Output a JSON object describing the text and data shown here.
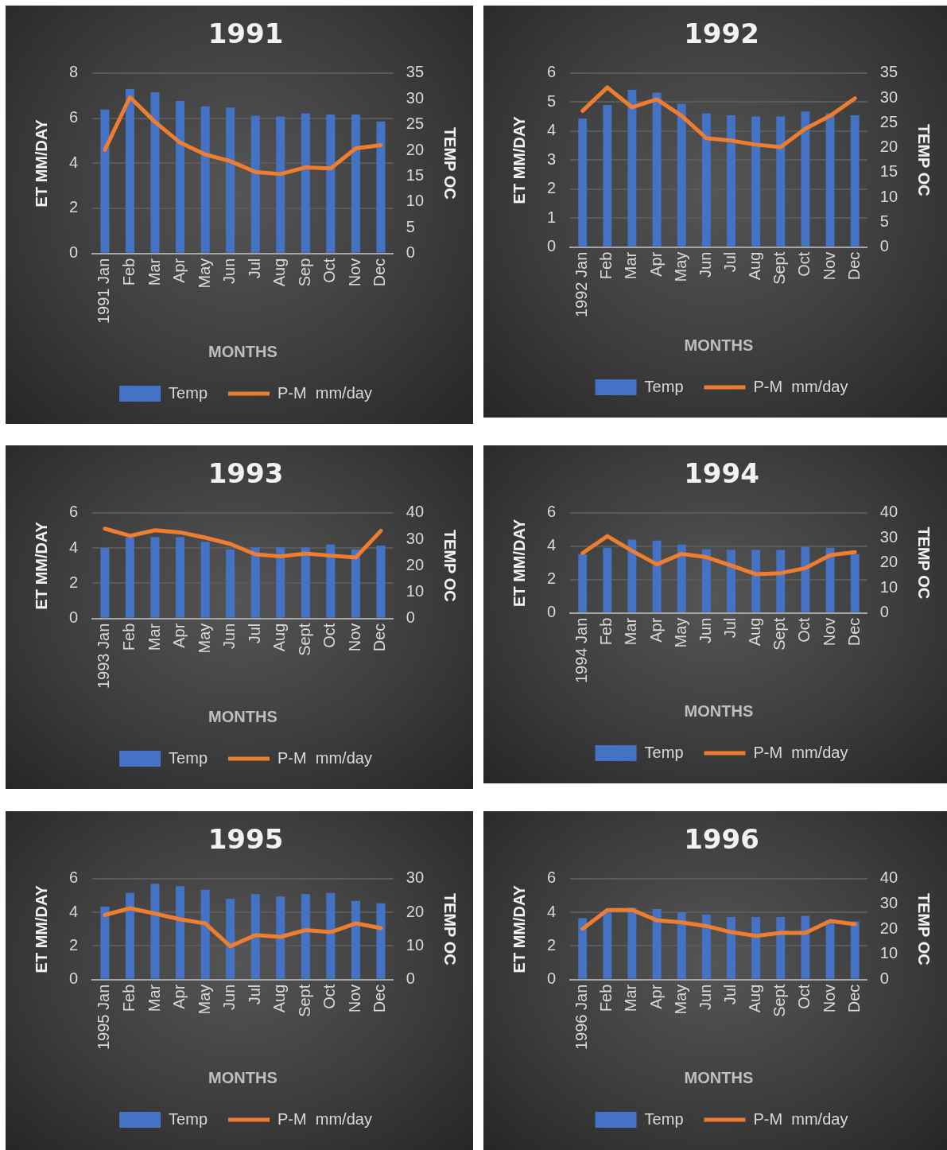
{
  "chart_data": [
    {
      "type": "bar",
      "title": "1991",
      "xlabel": "MONTHS",
      "ylabel": "ET MM/DAY",
      "y2label": "TEMP OC",
      "categories": [
        "1991 Jan",
        "Feb",
        "Mar",
        "Apr",
        "May",
        "Jun",
        "Jul",
        "Aug",
        "Sep",
        "Oct",
        "Nov",
        "Dec"
      ],
      "series": [
        {
          "name": "Temp",
          "color": "#4472c4",
          "values": [
            6.38,
            7.29,
            7.15,
            6.76,
            6.52,
            6.47,
            6.11,
            6.07,
            6.21,
            6.16,
            6.16,
            5.85
          ]
        },
        {
          "name": "P-M  mm/day",
          "type": "line",
          "axis": "y2",
          "color": "#ed7d31",
          "values": [
            20.1,
            30.3,
            25.5,
            21.5,
            19.2,
            17.9,
            15.8,
            15.4,
            16.7,
            16.5,
            20.4,
            21.0
          ]
        }
      ],
      "ylim": [
        0,
        8
      ],
      "yticks": [
        0,
        2,
        4,
        6,
        8
      ],
      "y2lim": [
        0,
        35
      ],
      "y2ticks": [
        0,
        5,
        10,
        15,
        20,
        25,
        30,
        35
      ],
      "grid": "y",
      "legend": "bottom",
      "marker": "none"
    },
    {
      "type": "bar",
      "title": "1992",
      "xlabel": "MONTHS",
      "ylabel": "ET MM/DAY",
      "y2label": "TEMP OC",
      "categories": [
        "1992 Jan",
        "Feb",
        "Mar",
        "Apr",
        "May",
        "Jun",
        "Jul",
        "Aug",
        "Sept",
        "Oct",
        "Nov",
        "Dec"
      ],
      "series": [
        {
          "name": "Temp",
          "color": "#4472c4",
          "values": [
            4.43,
            4.9,
            5.42,
            5.32,
            4.94,
            4.61,
            4.54,
            4.5,
            4.5,
            4.67,
            4.61,
            4.54
          ]
        },
        {
          "name": "P-M  mm/day",
          "type": "line",
          "axis": "y2",
          "color": "#ed7d31",
          "values": [
            27.4,
            32.1,
            28.1,
            29.7,
            26.4,
            21.9,
            21.4,
            20.6,
            20.1,
            23.8,
            26.4,
            29.9
          ]
        }
      ],
      "ylim": [
        0,
        6
      ],
      "yticks": [
        0,
        1,
        2,
        3,
        4,
        5,
        6
      ],
      "y2lim": [
        0,
        35
      ],
      "y2ticks": [
        0,
        5,
        10,
        15,
        20,
        25,
        30,
        35
      ],
      "grid": "y",
      "legend": "bottom",
      "marker": "none"
    },
    {
      "type": "bar",
      "title": "1993",
      "xlabel": "MONTHS",
      "ylabel": "ET MM/DAY",
      "y2label": "TEMP OC",
      "categories": [
        "1993 Jan",
        "Feb",
        "Mar",
        "Apr",
        "May",
        "Jun",
        "Jul",
        "Aug",
        "Sept",
        "Oct",
        "Nov",
        "Dec"
      ],
      "series": [
        {
          "name": "Temp",
          "color": "#4472c4",
          "values": [
            4.0,
            4.59,
            4.63,
            4.63,
            4.35,
            3.92,
            4.04,
            4.04,
            4.04,
            4.21,
            3.92,
            4.14
          ]
        },
        {
          "name": "P-M  mm/day",
          "type": "line",
          "axis": "y2",
          "color": "#ed7d31",
          "values": [
            34.0,
            31.3,
            33.4,
            32.6,
            30.6,
            28.2,
            24.3,
            23.5,
            24.6,
            23.8,
            23.1,
            33.2
          ]
        }
      ],
      "ylim": [
        0,
        6
      ],
      "yticks": [
        0,
        2,
        4,
        6
      ],
      "y2lim": [
        0,
        40
      ],
      "y2ticks": [
        0,
        10,
        20,
        30,
        40
      ],
      "grid": "y",
      "legend": "bottom",
      "marker": "none"
    },
    {
      "type": "bar",
      "title": "1994",
      "xlabel": "MONTHS",
      "ylabel": "ET MM/DAY",
      "y2label": "TEMP OC",
      "categories": [
        "1994 Jan",
        "Feb",
        "Mar",
        "Apr",
        "May",
        "Jun",
        "Jul",
        "Aug",
        "Sept",
        "Oct",
        "Nov",
        "Dec"
      ],
      "series": [
        {
          "name": "Temp",
          "color": "#4472c4",
          "values": [
            3.52,
            3.9,
            4.4,
            4.33,
            4.1,
            3.82,
            3.77,
            3.77,
            3.77,
            3.97,
            3.9,
            3.52
          ]
        },
        {
          "name": "P-M  mm/day",
          "type": "line",
          "axis": "y2",
          "color": "#ed7d31",
          "values": [
            23.9,
            30.7,
            24.8,
            19.4,
            23.6,
            22.3,
            18.9,
            15.5,
            15.9,
            17.9,
            23.1,
            24.3
          ]
        }
      ],
      "ylim": [
        0,
        6
      ],
      "yticks": [
        0,
        2,
        4,
        6
      ],
      "y2lim": [
        0,
        40
      ],
      "y2ticks": [
        0,
        10,
        20,
        30,
        40
      ],
      "grid": "y",
      "legend": "bottom",
      "marker": "none"
    },
    {
      "type": "bar",
      "title": "1995",
      "xlabel": "MONTHS",
      "ylabel": "ET MM/DAY",
      "y2label": "TEMP OC",
      "categories": [
        "1995 Jan",
        "Feb",
        "Mar",
        "Apr",
        "May",
        "Jun",
        "Jul",
        "Aug",
        "Sept",
        "Oct",
        "Nov",
        "Dec"
      ],
      "series": [
        {
          "name": "Temp",
          "color": "#4472c4",
          "values": [
            4.33,
            5.15,
            5.69,
            5.55,
            5.34,
            4.8,
            5.08,
            4.94,
            5.08,
            5.15,
            4.68,
            4.54
          ]
        },
        {
          "name": "P-M  mm/day",
          "type": "line",
          "axis": "y2",
          "color": "#ed7d31",
          "values": [
            19.2,
            21.2,
            19.6,
            17.9,
            16.7,
            9.9,
            13.2,
            12.7,
            14.7,
            14.1,
            16.7,
            15.3
          ]
        }
      ],
      "ylim": [
        0,
        6
      ],
      "yticks": [
        0,
        2,
        4,
        6
      ],
      "y2lim": [
        0,
        30
      ],
      "y2ticks": [
        0,
        10,
        20,
        30
      ],
      "grid": "y",
      "legend": "bottom",
      "marker": "none"
    },
    {
      "type": "bar",
      "title": "1996",
      "xlabel": "MONTHS",
      "ylabel": "ET MM/DAY",
      "y2label": "TEMP OC",
      "categories": [
        "1996 Jan",
        "Feb",
        "Mar",
        "Apr",
        "May",
        "Jun",
        "Jul",
        "Aug",
        "Sept",
        "Oct",
        "Nov",
        "Dec"
      ],
      "series": [
        {
          "name": "Temp",
          "color": "#4472c4",
          "values": [
            3.65,
            4.0,
            4.28,
            4.19,
            4.0,
            3.86,
            3.72,
            3.72,
            3.72,
            3.79,
            3.53,
            3.46
          ]
        },
        {
          "name": "P-M  mm/day",
          "type": "line",
          "axis": "y2",
          "color": "#ed7d31",
          "values": [
            20.1,
            27.6,
            27.6,
            23.5,
            22.7,
            21.2,
            18.8,
            17.3,
            18.5,
            18.5,
            23.2,
            22.0
          ]
        }
      ],
      "ylim": [
        0,
        6
      ],
      "yticks": [
        0,
        2,
        4,
        6
      ],
      "y2lim": [
        0,
        40
      ],
      "y2ticks": [
        0,
        10,
        20,
        30,
        40
      ],
      "grid": "y",
      "legend": "bottom",
      "marker": "none"
    }
  ]
}
